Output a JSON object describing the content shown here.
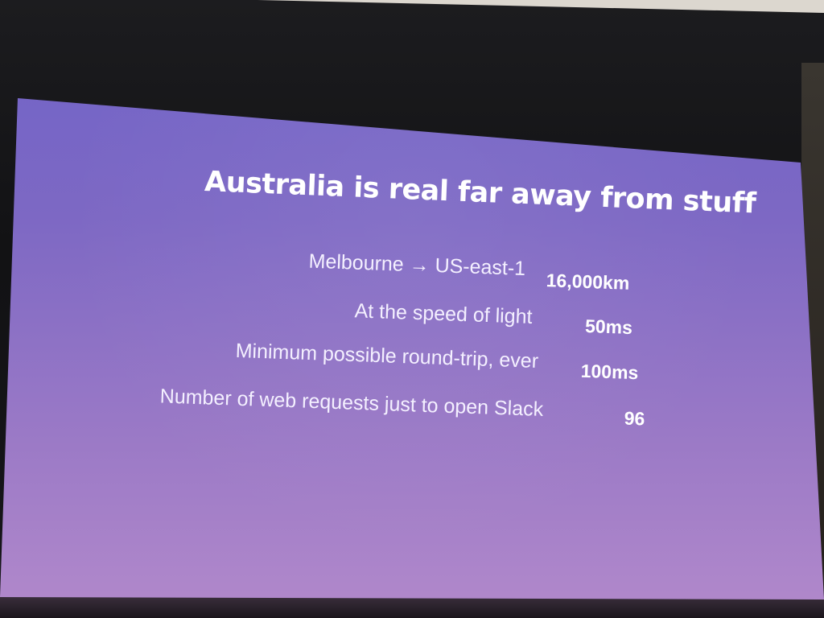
{
  "slide": {
    "title": "Australia is real far away from stuff",
    "rows": [
      {
        "label": "Melbourne → US-east-1",
        "value": "16,000km"
      },
      {
        "label": "At the speed of light",
        "value": "50ms"
      },
      {
        "label": "Minimum possible round-trip, ever",
        "value": "100ms"
      },
      {
        "label": "Number of web requests just to open Slack",
        "value": "96"
      }
    ]
  },
  "colors": {
    "slide_background_top": "#6f63c8",
    "slide_background_bottom": "#b289cb",
    "text": "#ffffff"
  }
}
